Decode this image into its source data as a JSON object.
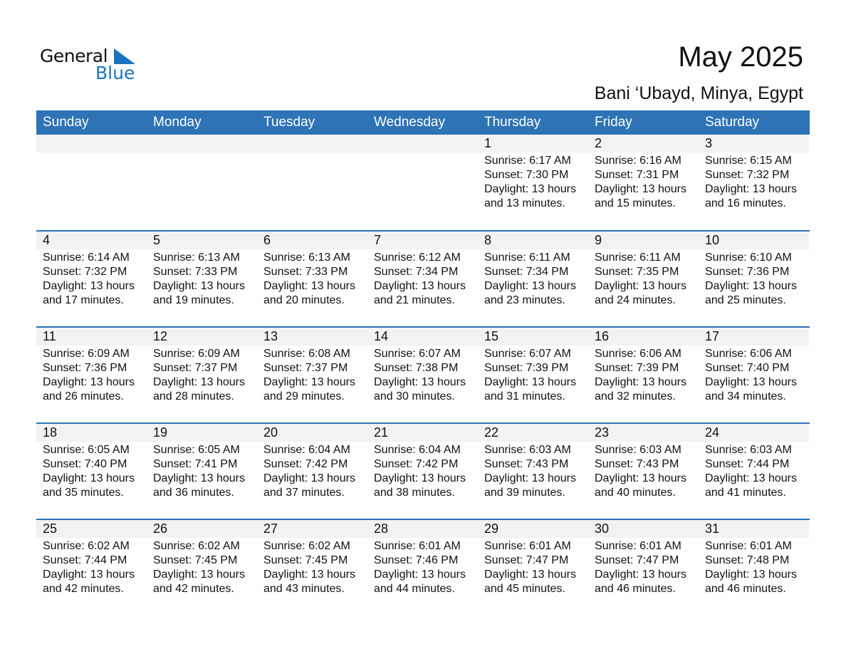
{
  "logo": {
    "line1": "General",
    "line2": "Blue",
    "accent": "#1a73c0"
  },
  "header": {
    "title": "May 2025",
    "location": "Bani ‘Ubayd, Minya, Egypt"
  },
  "colors": {
    "header_bg": "#2e73b5",
    "day_strip": "#f2f2f2"
  },
  "weekdays": [
    "Sunday",
    "Monday",
    "Tuesday",
    "Wednesday",
    "Thursday",
    "Friday",
    "Saturday"
  ],
  "leading_blank_days": 4,
  "days": [
    {
      "day": "1",
      "sunrise": "Sunrise: 6:17 AM",
      "sunset": "Sunset: 7:30 PM",
      "daylight": "Daylight: 13 hours",
      "minutes": "and 13 minutes."
    },
    {
      "day": "2",
      "sunrise": "Sunrise: 6:16 AM",
      "sunset": "Sunset: 7:31 PM",
      "daylight": "Daylight: 13 hours",
      "minutes": "and 15 minutes."
    },
    {
      "day": "3",
      "sunrise": "Sunrise: 6:15 AM",
      "sunset": "Sunset: 7:32 PM",
      "daylight": "Daylight: 13 hours",
      "minutes": "and 16 minutes."
    },
    {
      "day": "4",
      "sunrise": "Sunrise: 6:14 AM",
      "sunset": "Sunset: 7:32 PM",
      "daylight": "Daylight: 13 hours",
      "minutes": "and 17 minutes."
    },
    {
      "day": "5",
      "sunrise": "Sunrise: 6:13 AM",
      "sunset": "Sunset: 7:33 PM",
      "daylight": "Daylight: 13 hours",
      "minutes": "and 19 minutes."
    },
    {
      "day": "6",
      "sunrise": "Sunrise: 6:13 AM",
      "sunset": "Sunset: 7:33 PM",
      "daylight": "Daylight: 13 hours",
      "minutes": "and 20 minutes."
    },
    {
      "day": "7",
      "sunrise": "Sunrise: 6:12 AM",
      "sunset": "Sunset: 7:34 PM",
      "daylight": "Daylight: 13 hours",
      "minutes": "and 21 minutes."
    },
    {
      "day": "8",
      "sunrise": "Sunrise: 6:11 AM",
      "sunset": "Sunset: 7:34 PM",
      "daylight": "Daylight: 13 hours",
      "minutes": "and 23 minutes."
    },
    {
      "day": "9",
      "sunrise": "Sunrise: 6:11 AM",
      "sunset": "Sunset: 7:35 PM",
      "daylight": "Daylight: 13 hours",
      "minutes": "and 24 minutes."
    },
    {
      "day": "10",
      "sunrise": "Sunrise: 6:10 AM",
      "sunset": "Sunset: 7:36 PM",
      "daylight": "Daylight: 13 hours",
      "minutes": "and 25 minutes."
    },
    {
      "day": "11",
      "sunrise": "Sunrise: 6:09 AM",
      "sunset": "Sunset: 7:36 PM",
      "daylight": "Daylight: 13 hours",
      "minutes": "and 26 minutes."
    },
    {
      "day": "12",
      "sunrise": "Sunrise: 6:09 AM",
      "sunset": "Sunset: 7:37 PM",
      "daylight": "Daylight: 13 hours",
      "minutes": "and 28 minutes."
    },
    {
      "day": "13",
      "sunrise": "Sunrise: 6:08 AM",
      "sunset": "Sunset: 7:37 PM",
      "daylight": "Daylight: 13 hours",
      "minutes": "and 29 minutes."
    },
    {
      "day": "14",
      "sunrise": "Sunrise: 6:07 AM",
      "sunset": "Sunset: 7:38 PM",
      "daylight": "Daylight: 13 hours",
      "minutes": "and 30 minutes."
    },
    {
      "day": "15",
      "sunrise": "Sunrise: 6:07 AM",
      "sunset": "Sunset: 7:39 PM",
      "daylight": "Daylight: 13 hours",
      "minutes": "and 31 minutes."
    },
    {
      "day": "16",
      "sunrise": "Sunrise: 6:06 AM",
      "sunset": "Sunset: 7:39 PM",
      "daylight": "Daylight: 13 hours",
      "minutes": "and 32 minutes."
    },
    {
      "day": "17",
      "sunrise": "Sunrise: 6:06 AM",
      "sunset": "Sunset: 7:40 PM",
      "daylight": "Daylight: 13 hours",
      "minutes": "and 34 minutes."
    },
    {
      "day": "18",
      "sunrise": "Sunrise: 6:05 AM",
      "sunset": "Sunset: 7:40 PM",
      "daylight": "Daylight: 13 hours",
      "minutes": "and 35 minutes."
    },
    {
      "day": "19",
      "sunrise": "Sunrise: 6:05 AM",
      "sunset": "Sunset: 7:41 PM",
      "daylight": "Daylight: 13 hours",
      "minutes": "and 36 minutes."
    },
    {
      "day": "20",
      "sunrise": "Sunrise: 6:04 AM",
      "sunset": "Sunset: 7:42 PM",
      "daylight": "Daylight: 13 hours",
      "minutes": "and 37 minutes."
    },
    {
      "day": "21",
      "sunrise": "Sunrise: 6:04 AM",
      "sunset": "Sunset: 7:42 PM",
      "daylight": "Daylight: 13 hours",
      "minutes": "and 38 minutes."
    },
    {
      "day": "22",
      "sunrise": "Sunrise: 6:03 AM",
      "sunset": "Sunset: 7:43 PM",
      "daylight": "Daylight: 13 hours",
      "minutes": "and 39 minutes."
    },
    {
      "day": "23",
      "sunrise": "Sunrise: 6:03 AM",
      "sunset": "Sunset: 7:43 PM",
      "daylight": "Daylight: 13 hours",
      "minutes": "and 40 minutes."
    },
    {
      "day": "24",
      "sunrise": "Sunrise: 6:03 AM",
      "sunset": "Sunset: 7:44 PM",
      "daylight": "Daylight: 13 hours",
      "minutes": "and 41 minutes."
    },
    {
      "day": "25",
      "sunrise": "Sunrise: 6:02 AM",
      "sunset": "Sunset: 7:44 PM",
      "daylight": "Daylight: 13 hours",
      "minutes": "and 42 minutes."
    },
    {
      "day": "26",
      "sunrise": "Sunrise: 6:02 AM",
      "sunset": "Sunset: 7:45 PM",
      "daylight": "Daylight: 13 hours",
      "minutes": "and 42 minutes."
    },
    {
      "day": "27",
      "sunrise": "Sunrise: 6:02 AM",
      "sunset": "Sunset: 7:45 PM",
      "daylight": "Daylight: 13 hours",
      "minutes": "and 43 minutes."
    },
    {
      "day": "28",
      "sunrise": "Sunrise: 6:01 AM",
      "sunset": "Sunset: 7:46 PM",
      "daylight": "Daylight: 13 hours",
      "minutes": "and 44 minutes."
    },
    {
      "day": "29",
      "sunrise": "Sunrise: 6:01 AM",
      "sunset": "Sunset: 7:47 PM",
      "daylight": "Daylight: 13 hours",
      "minutes": "and 45 minutes."
    },
    {
      "day": "30",
      "sunrise": "Sunrise: 6:01 AM",
      "sunset": "Sunset: 7:47 PM",
      "daylight": "Daylight: 13 hours",
      "minutes": "and 46 minutes."
    },
    {
      "day": "31",
      "sunrise": "Sunrise: 6:01 AM",
      "sunset": "Sunset: 7:48 PM",
      "daylight": "Daylight: 13 hours",
      "minutes": "and 46 minutes."
    }
  ]
}
